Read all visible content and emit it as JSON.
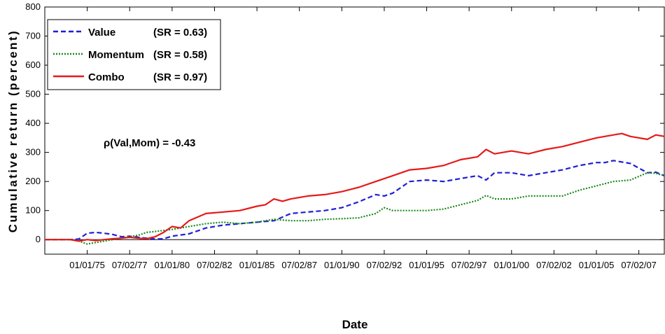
{
  "chart_data": {
    "type": "line",
    "title": "",
    "xlabel": "Date",
    "ylabel": "Cumulative return (percent)",
    "ylim": [
      -50,
      800
    ],
    "xlim": [
      1972.5,
      2009.0
    ],
    "yticks": [
      0,
      100,
      200,
      300,
      400,
      500,
      600,
      700,
      800
    ],
    "xticks": [
      {
        "value": 1975.0,
        "label": "01/01/75"
      },
      {
        "value": 1977.5,
        "label": "07/02/77"
      },
      {
        "value": 1980.0,
        "label": "01/01/80"
      },
      {
        "value": 1982.5,
        "label": "07/02/82"
      },
      {
        "value": 1985.0,
        "label": "01/01/85"
      },
      {
        "value": 1987.5,
        "label": "07/02/87"
      },
      {
        "value": 1990.0,
        "label": "01/01/90"
      },
      {
        "value": 1992.5,
        "label": "07/02/92"
      },
      {
        "value": 1995.0,
        "label": "01/01/95"
      },
      {
        "value": 1997.5,
        "label": "07/02/97"
      },
      {
        "value": 2000.0,
        "label": "01/01/00"
      },
      {
        "value": 2002.5,
        "label": "07/02/02"
      },
      {
        "value": 2005.0,
        "label": "01/01/05"
      },
      {
        "value": 2007.5,
        "label": "07/02/07"
      }
    ],
    "grid": false,
    "legend_position": "top-left",
    "series": [
      {
        "name": "Value",
        "sr_label": "(SR = 0.63)",
        "color": "#1f1fd6",
        "style": "dashed",
        "x": [
          1972.5,
          1974.0,
          1974.5,
          1975.0,
          1975.5,
          1976.0,
          1976.5,
          1977.0,
          1977.5,
          1978.0,
          1978.5,
          1979.0,
          1979.5,
          1980.0,
          1981.0,
          1982.0,
          1983.0,
          1984.0,
          1985.0,
          1986.0,
          1987.0,
          1988.0,
          1989.0,
          1990.0,
          1991.0,
          1992.0,
          1992.5,
          1993.0,
          1994.0,
          1995.0,
          1996.0,
          1997.0,
          1998.0,
          1998.5,
          1999.0,
          2000.0,
          2001.0,
          2002.0,
          2003.0,
          2004.0,
          2005.0,
          2005.5,
          2006.0,
          2007.0,
          2008.0,
          2008.5,
          2009.0
        ],
        "y": [
          0,
          0,
          2,
          22,
          25,
          22,
          18,
          10,
          12,
          8,
          5,
          2,
          3,
          12,
          20,
          40,
          50,
          55,
          60,
          65,
          90,
          95,
          100,
          110,
          130,
          155,
          150,
          160,
          200,
          205,
          200,
          210,
          220,
          205,
          230,
          230,
          220,
          230,
          240,
          255,
          265,
          265,
          272,
          262,
          230,
          232,
          220
        ]
      },
      {
        "name": "Momentum",
        "sr_label": "(SR = 0.58)",
        "color": "#1a8a1a",
        "style": "dotted",
        "x": [
          1972.5,
          1974.0,
          1974.5,
          1975.0,
          1975.5,
          1976.0,
          1976.5,
          1977.0,
          1977.5,
          1978.0,
          1978.5,
          1979.0,
          1980.0,
          1981.0,
          1982.0,
          1983.0,
          1984.0,
          1985.0,
          1986.0,
          1987.0,
          1988.0,
          1989.0,
          1990.0,
          1991.0,
          1992.0,
          1992.5,
          1993.0,
          1994.0,
          1995.0,
          1996.0,
          1997.0,
          1998.0,
          1998.5,
          1999.0,
          2000.0,
          2001.0,
          2002.0,
          2003.0,
          2004.0,
          2005.0,
          2006.0,
          2007.0,
          2008.0,
          2008.5,
          2009.0
        ],
        "y": [
          0,
          0,
          -5,
          -15,
          -10,
          -5,
          0,
          5,
          10,
          15,
          25,
          28,
          35,
          45,
          55,
          60,
          55,
          60,
          70,
          65,
          65,
          70,
          72,
          75,
          90,
          110,
          100,
          100,
          100,
          105,
          120,
          135,
          152,
          140,
          140,
          150,
          150,
          150,
          170,
          185,
          200,
          205,
          230,
          228,
          220
        ]
      },
      {
        "name": "Combo",
        "sr_label": "(SR = 0.97)",
        "color": "#e51a1a",
        "style": "solid",
        "x": [
          1972.5,
          1974.0,
          1974.5,
          1975.0,
          1975.5,
          1976.0,
          1976.5,
          1977.0,
          1977.5,
          1978.0,
          1978.5,
          1979.0,
          1979.5,
          1980.0,
          1980.5,
          1981.0,
          1982.0,
          1983.0,
          1984.0,
          1985.0,
          1985.5,
          1986.0,
          1986.5,
          1987.0,
          1988.0,
          1989.0,
          1990.0,
          1991.0,
          1992.0,
          1993.0,
          1994.0,
          1995.0,
          1996.0,
          1997.0,
          1998.0,
          1998.5,
          1999.0,
          2000.0,
          2001.0,
          2002.0,
          2003.0,
          2004.0,
          2005.0,
          2006.0,
          2006.5,
          2007.0,
          2008.0,
          2008.5,
          2009.0
        ],
        "y": [
          0,
          0,
          -5,
          0,
          -3,
          0,
          3,
          5,
          8,
          5,
          3,
          10,
          25,
          45,
          40,
          65,
          90,
          95,
          100,
          115,
          120,
          140,
          132,
          140,
          150,
          155,
          165,
          180,
          200,
          220,
          240,
          245,
          255,
          275,
          285,
          310,
          295,
          305,
          295,
          310,
          320,
          335,
          350,
          360,
          365,
          355,
          345,
          360,
          355
        ]
      }
    ],
    "annotations": [
      {
        "text": "ρ(Val,Mom) = -0.43"
      }
    ]
  }
}
